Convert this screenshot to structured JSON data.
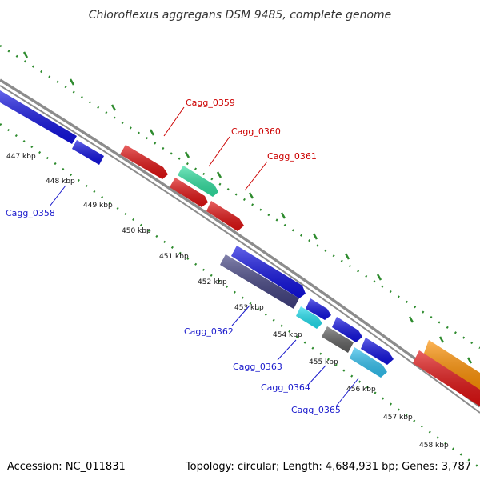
{
  "title": "Chloroflexus aggregans DSM 9485, complete genome",
  "footer": {
    "accession": "Accession: NC_011831",
    "summary": "Topology: circular; Length: 4,684,931 bp; Genes: 3,787"
  },
  "kbp_ticks": [
    "447 kbp",
    "448 kbp",
    "449 kbp",
    "450 kbp",
    "451 kbp",
    "452 kbp",
    "453 kbp",
    "454 kbp",
    "455 kbp",
    "456 kbp",
    "457 kbp",
    "458 kbp"
  ],
  "gene_labels": [
    "Cagg_0358",
    "Cagg_0359",
    "Cagg_0360",
    "Cagg_0361",
    "Cagg_0362",
    "Cagg_0363",
    "Cagg_0364",
    "Cagg_0365"
  ],
  "colors": {
    "backbone": "#8c8c8c",
    "dots": "#2e8b2e",
    "blue": "#1010e0",
    "red": "#e01010",
    "green": "#30e0a0",
    "navy": "#404080",
    "cyan": "#20e0f0",
    "sky": "#30c0f0",
    "gray": "#606060",
    "orange": "#ff9000"
  }
}
